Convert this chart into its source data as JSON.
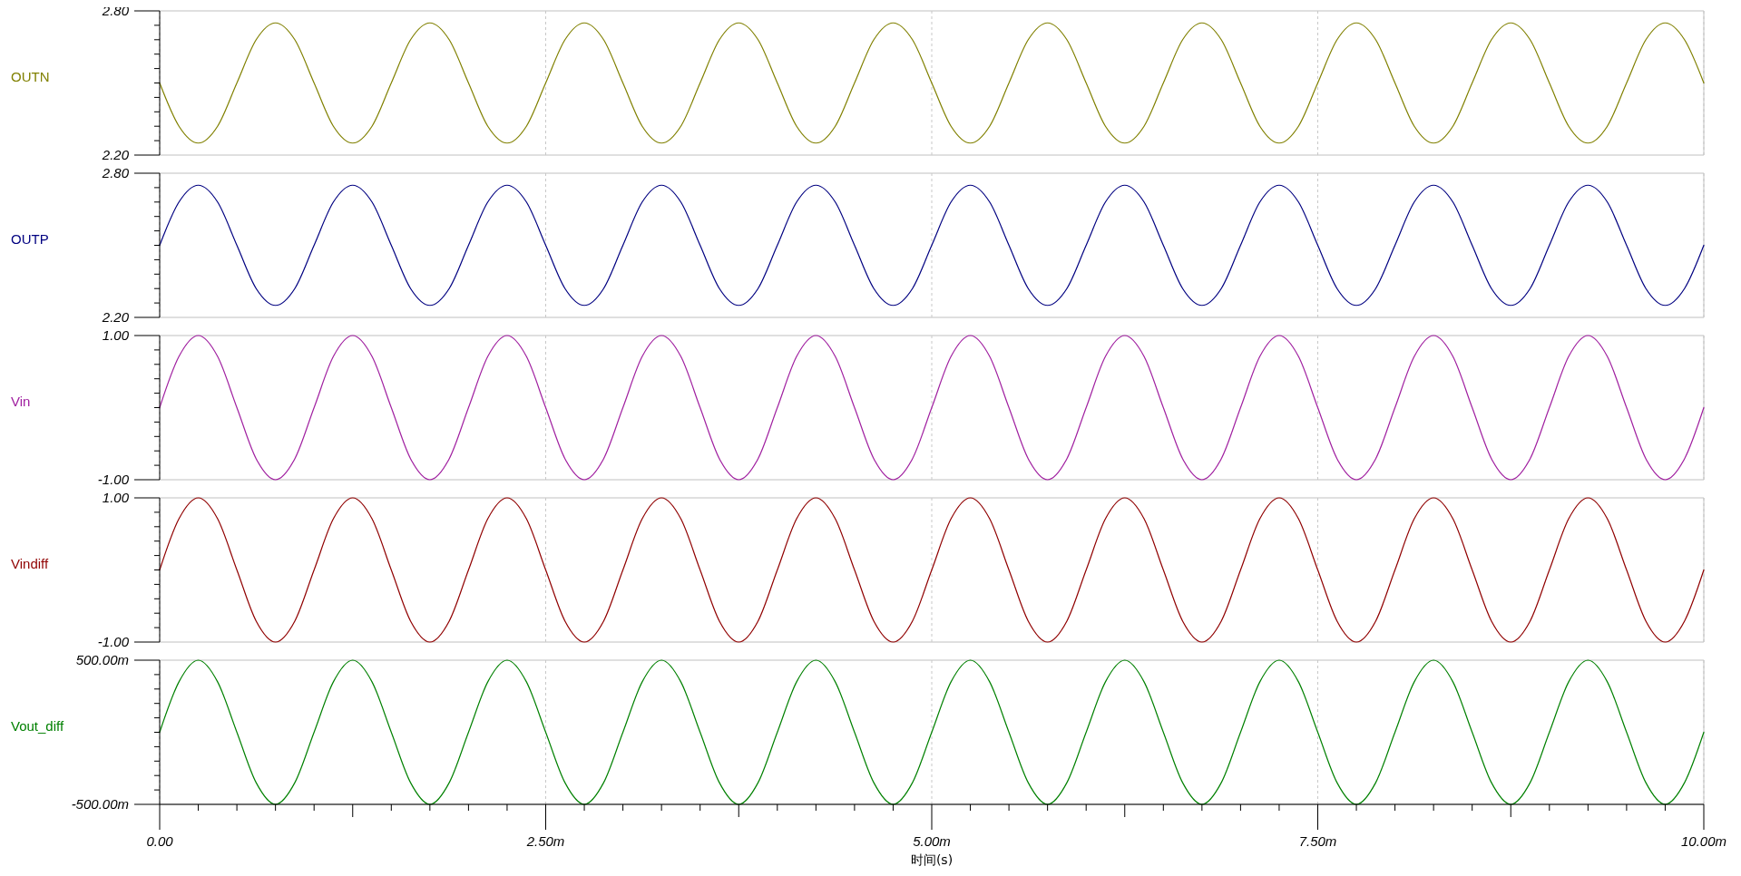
{
  "chart_data": [
    {
      "type": "line",
      "xlim": [
        0,
        10
      ],
      "ylim": [
        2.2,
        2.8
      ],
      "tick_labels": "y",
      "grid": "x",
      "xticks": [
        {
          "value": 0,
          "label": null
        },
        {
          "value": 2.5,
          "label": null
        },
        {
          "value": 5,
          "label": null
        },
        {
          "value": 7.5,
          "label": null
        },
        {
          "value": 10,
          "label": null
        }
      ],
      "yticks": [
        {
          "value": 2.2,
          "label": "2.20"
        },
        {
          "value": 2.26,
          "label": null
        },
        {
          "value": 2.32,
          "label": null
        },
        {
          "value": 2.38,
          "label": null
        },
        {
          "value": 2.44,
          "label": null
        },
        {
          "value": 2.5,
          "label": null
        },
        {
          "value": 2.56,
          "label": null
        },
        {
          "value": 2.62,
          "label": null
        },
        {
          "value": 2.68,
          "label": null
        },
        {
          "value": 2.74,
          "label": null
        },
        {
          "value": 2.8,
          "label": "2.80"
        }
      ],
      "x": [
        0,
        0.125,
        0.25,
        0.375,
        0.5,
        0.625,
        0.75,
        0.875,
        1,
        1.125,
        1.25,
        1.375,
        1.5,
        1.625,
        1.75,
        1.875,
        2,
        2.125,
        2.25,
        2.375,
        2.5,
        2.625,
        2.75,
        2.875,
        3,
        3.125,
        3.25,
        3.375,
        3.5,
        3.625,
        3.75,
        3.875,
        4,
        4.125,
        4.25,
        4.375,
        4.5,
        4.625,
        4.75,
        4.875,
        5,
        5.125,
        5.25,
        5.375,
        5.5,
        5.625,
        5.75,
        5.875,
        6,
        6.125,
        6.25,
        6.375,
        6.5,
        6.625,
        6.75,
        6.875,
        7,
        7.125,
        7.25,
        7.375,
        7.5,
        7.625,
        7.75,
        7.875,
        8,
        8.125,
        8.25,
        8.375,
        8.5,
        8.625,
        8.75,
        8.875,
        9,
        9.125,
        9.25,
        9.375,
        9.5,
        9.625,
        9.75,
        9.875,
        10
      ],
      "series": [
        {
          "name": "OUTN",
          "color": "#808000",
          "values": [
            2.5,
            2.32,
            2.25,
            2.32,
            2.5,
            2.68,
            2.75,
            2.68,
            2.5,
            2.32,
            2.25,
            2.32,
            2.5,
            2.68,
            2.75,
            2.68,
            2.5,
            2.32,
            2.25,
            2.32,
            2.5,
            2.68,
            2.75,
            2.68,
            2.5,
            2.32,
            2.25,
            2.32,
            2.5,
            2.68,
            2.75,
            2.68,
            2.5,
            2.32,
            2.25,
            2.32,
            2.5,
            2.68,
            2.75,
            2.68,
            2.5,
            2.32,
            2.25,
            2.32,
            2.5,
            2.68,
            2.75,
            2.68,
            2.5,
            2.32,
            2.25,
            2.32,
            2.5,
            2.68,
            2.75,
            2.68,
            2.5,
            2.32,
            2.25,
            2.32,
            2.5,
            2.68,
            2.75,
            2.68,
            2.5,
            2.32,
            2.25,
            2.32,
            2.5,
            2.68,
            2.75,
            2.68,
            2.5,
            2.32,
            2.25,
            2.32,
            2.5,
            2.68,
            2.75,
            2.68,
            2.5
          ]
        }
      ]
    },
    {
      "type": "line",
      "xlim": [
        0,
        10
      ],
      "ylim": [
        2.2,
        2.8
      ],
      "tick_labels": "y",
      "grid": "x",
      "xticks": [
        {
          "value": 0,
          "label": null
        },
        {
          "value": 2.5,
          "label": null
        },
        {
          "value": 5,
          "label": null
        },
        {
          "value": 7.5,
          "label": null
        },
        {
          "value": 10,
          "label": null
        }
      ],
      "yticks": [
        {
          "value": 2.2,
          "label": "2.20"
        },
        {
          "value": 2.26,
          "label": null
        },
        {
          "value": 2.32,
          "label": null
        },
        {
          "value": 2.38,
          "label": null
        },
        {
          "value": 2.44,
          "label": null
        },
        {
          "value": 2.5,
          "label": null
        },
        {
          "value": 2.56,
          "label": null
        },
        {
          "value": 2.62,
          "label": null
        },
        {
          "value": 2.68,
          "label": null
        },
        {
          "value": 2.74,
          "label": null
        },
        {
          "value": 2.8,
          "label": "2.80"
        }
      ],
      "x": [
        0,
        0.125,
        0.25,
        0.375,
        0.5,
        0.625,
        0.75,
        0.875,
        1,
        1.125,
        1.25,
        1.375,
        1.5,
        1.625,
        1.75,
        1.875,
        2,
        2.125,
        2.25,
        2.375,
        2.5,
        2.625,
        2.75,
        2.875,
        3,
        3.125,
        3.25,
        3.375,
        3.5,
        3.625,
        3.75,
        3.875,
        4,
        4.125,
        4.25,
        4.375,
        4.5,
        4.625,
        4.75,
        4.875,
        5,
        5.125,
        5.25,
        5.375,
        5.5,
        5.625,
        5.75,
        5.875,
        6,
        6.125,
        6.25,
        6.375,
        6.5,
        6.625,
        6.75,
        6.875,
        7,
        7.125,
        7.25,
        7.375,
        7.5,
        7.625,
        7.75,
        7.875,
        8,
        8.125,
        8.25,
        8.375,
        8.5,
        8.625,
        8.75,
        8.875,
        9,
        9.125,
        9.25,
        9.375,
        9.5,
        9.625,
        9.75,
        9.875,
        10
      ],
      "series": [
        {
          "name": "OUTP",
          "color": "#000080",
          "values": [
            2.5,
            2.68,
            2.75,
            2.68,
            2.5,
            2.32,
            2.25,
            2.32,
            2.5,
            2.68,
            2.75,
            2.68,
            2.5,
            2.32,
            2.25,
            2.32,
            2.5,
            2.68,
            2.75,
            2.68,
            2.5,
            2.32,
            2.25,
            2.32,
            2.5,
            2.68,
            2.75,
            2.68,
            2.5,
            2.32,
            2.25,
            2.32,
            2.5,
            2.68,
            2.75,
            2.68,
            2.5,
            2.32,
            2.25,
            2.32,
            2.5,
            2.68,
            2.75,
            2.68,
            2.5,
            2.32,
            2.25,
            2.32,
            2.5,
            2.68,
            2.75,
            2.68,
            2.5,
            2.32,
            2.25,
            2.32,
            2.5,
            2.68,
            2.75,
            2.68,
            2.5,
            2.32,
            2.25,
            2.32,
            2.5,
            2.68,
            2.75,
            2.68,
            2.5,
            2.32,
            2.25,
            2.32,
            2.5,
            2.68,
            2.75,
            2.68,
            2.5,
            2.32,
            2.25,
            2.32,
            2.5
          ]
        }
      ]
    },
    {
      "type": "line",
      "xlim": [
        0,
        10
      ],
      "ylim": [
        -1,
        1
      ],
      "tick_labels": "y",
      "grid": "x",
      "xticks": [
        {
          "value": 0,
          "label": null
        },
        {
          "value": 2.5,
          "label": null
        },
        {
          "value": 5,
          "label": null
        },
        {
          "value": 7.5,
          "label": null
        },
        {
          "value": 10,
          "label": null
        }
      ],
      "yticks": [
        {
          "value": -1,
          "label": "-1.00"
        },
        {
          "value": -0.8,
          "label": null
        },
        {
          "value": -0.6,
          "label": null
        },
        {
          "value": -0.4,
          "label": null
        },
        {
          "value": -0.2,
          "label": null
        },
        {
          "value": 0,
          "label": null
        },
        {
          "value": 0.2,
          "label": null
        },
        {
          "value": 0.4,
          "label": null
        },
        {
          "value": 0.6,
          "label": null
        },
        {
          "value": 0.8,
          "label": null
        },
        {
          "value": 1,
          "label": "1.00"
        }
      ],
      "x": [
        0,
        0.125,
        0.25,
        0.375,
        0.5,
        0.625,
        0.75,
        0.875,
        1,
        1.125,
        1.25,
        1.375,
        1.5,
        1.625,
        1.75,
        1.875,
        2,
        2.125,
        2.25,
        2.375,
        2.5,
        2.625,
        2.75,
        2.875,
        3,
        3.125,
        3.25,
        3.375,
        3.5,
        3.625,
        3.75,
        3.875,
        4,
        4.125,
        4.25,
        4.375,
        4.5,
        4.625,
        4.75,
        4.875,
        5,
        5.125,
        5.25,
        5.375,
        5.5,
        5.625,
        5.75,
        5.875,
        6,
        6.125,
        6.25,
        6.375,
        6.5,
        6.625,
        6.75,
        6.875,
        7,
        7.125,
        7.25,
        7.375,
        7.5,
        7.625,
        7.75,
        7.875,
        8,
        8.125,
        8.25,
        8.375,
        8.5,
        8.625,
        8.75,
        8.875,
        9,
        9.125,
        9.25,
        9.375,
        9.5,
        9.625,
        9.75,
        9.875,
        10
      ],
      "series": [
        {
          "name": "Vin",
          "color": "#a020a0",
          "values": [
            0,
            0.71,
            1,
            0.71,
            0,
            -0.71,
            -1,
            -0.71,
            0,
            0.71,
            1,
            0.71,
            0,
            -0.71,
            -1,
            -0.71,
            0,
            0.71,
            1,
            0.71,
            0,
            -0.71,
            -1,
            -0.71,
            0,
            0.71,
            1,
            0.71,
            0,
            -0.71,
            -1,
            -0.71,
            0,
            0.71,
            1,
            0.71,
            0,
            -0.71,
            -1,
            -0.71,
            0,
            0.71,
            1,
            0.71,
            0,
            -0.71,
            -1,
            -0.71,
            0,
            0.71,
            1,
            0.71,
            0,
            -0.71,
            -1,
            -0.71,
            0,
            0.71,
            1,
            0.71,
            0,
            -0.71,
            -1,
            -0.71,
            0,
            0.71,
            1,
            0.71,
            0,
            -0.71,
            -1,
            -0.71,
            0,
            0.71,
            1,
            0.71,
            0,
            -0.71,
            -1,
            -0.71,
            0
          ]
        }
      ]
    },
    {
      "type": "line",
      "xlim": [
        0,
        10
      ],
      "ylim": [
        -1,
        1
      ],
      "tick_labels": "y",
      "grid": "x",
      "xticks": [
        {
          "value": 0,
          "label": null
        },
        {
          "value": 2.5,
          "label": null
        },
        {
          "value": 5,
          "label": null
        },
        {
          "value": 7.5,
          "label": null
        },
        {
          "value": 10,
          "label": null
        }
      ],
      "yticks": [
        {
          "value": -1,
          "label": "-1.00"
        },
        {
          "value": -0.8,
          "label": null
        },
        {
          "value": -0.6,
          "label": null
        },
        {
          "value": -0.4,
          "label": null
        },
        {
          "value": -0.2,
          "label": null
        },
        {
          "value": 0,
          "label": null
        },
        {
          "value": 0.2,
          "label": null
        },
        {
          "value": 0.4,
          "label": null
        },
        {
          "value": 0.6,
          "label": null
        },
        {
          "value": 0.8,
          "label": null
        },
        {
          "value": 1,
          "label": "1.00"
        }
      ],
      "x": [
        0,
        0.125,
        0.25,
        0.375,
        0.5,
        0.625,
        0.75,
        0.875,
        1,
        1.125,
        1.25,
        1.375,
        1.5,
        1.625,
        1.75,
        1.875,
        2,
        2.125,
        2.25,
        2.375,
        2.5,
        2.625,
        2.75,
        2.875,
        3,
        3.125,
        3.25,
        3.375,
        3.5,
        3.625,
        3.75,
        3.875,
        4,
        4.125,
        4.25,
        4.375,
        4.5,
        4.625,
        4.75,
        4.875,
        5,
        5.125,
        5.25,
        5.375,
        5.5,
        5.625,
        5.75,
        5.875,
        6,
        6.125,
        6.25,
        6.375,
        6.5,
        6.625,
        6.75,
        6.875,
        7,
        7.125,
        7.25,
        7.375,
        7.5,
        7.625,
        7.75,
        7.875,
        8,
        8.125,
        8.25,
        8.375,
        8.5,
        8.625,
        8.75,
        8.875,
        9,
        9.125,
        9.25,
        9.375,
        9.5,
        9.625,
        9.75,
        9.875,
        10
      ],
      "series": [
        {
          "name": "Vindiff",
          "color": "#900000",
          "values": [
            0,
            0.71,
            1,
            0.71,
            0,
            -0.71,
            -1,
            -0.71,
            0,
            0.71,
            1,
            0.71,
            0,
            -0.71,
            -1,
            -0.71,
            0,
            0.71,
            1,
            0.71,
            0,
            -0.71,
            -1,
            -0.71,
            0,
            0.71,
            1,
            0.71,
            0,
            -0.71,
            -1,
            -0.71,
            0,
            0.71,
            1,
            0.71,
            0,
            -0.71,
            -1,
            -0.71,
            0,
            0.71,
            1,
            0.71,
            0,
            -0.71,
            -1,
            -0.71,
            0,
            0.71,
            1,
            0.71,
            0,
            -0.71,
            -1,
            -0.71,
            0,
            0.71,
            1,
            0.71,
            0,
            -0.71,
            -1,
            -0.71,
            0,
            0.71,
            1,
            0.71,
            0,
            -0.71,
            -1,
            -0.71,
            0,
            0.71,
            1,
            0.71,
            0,
            -0.71,
            -1,
            -0.71,
            0
          ]
        }
      ]
    },
    {
      "type": "line",
      "xlim": [
        0,
        10
      ],
      "ylim": [
        -500,
        500
      ],
      "grid": "x",
      "xlabel": "时间(s)",
      "xticks": [
        {
          "value": 0,
          "label": "0.00"
        },
        {
          "value": 2.5,
          "label": "2.50m"
        },
        {
          "value": 5,
          "label": "5.00m"
        },
        {
          "value": 7.5,
          "label": "7.50m"
        },
        {
          "value": 10,
          "label": "10.00m"
        }
      ],
      "yticks": [
        {
          "value": -500,
          "label": "-500.00m"
        },
        {
          "value": -400,
          "label": null
        },
        {
          "value": -300,
          "label": null
        },
        {
          "value": -200,
          "label": null
        },
        {
          "value": -100,
          "label": null
        },
        {
          "value": 0,
          "label": null
        },
        {
          "value": 100,
          "label": null
        },
        {
          "value": 200,
          "label": null
        },
        {
          "value": 300,
          "label": null
        },
        {
          "value": 400,
          "label": null
        },
        {
          "value": 500,
          "label": "500.00m"
        }
      ],
      "x": [
        0,
        0.125,
        0.25,
        0.375,
        0.5,
        0.625,
        0.75,
        0.875,
        1,
        1.125,
        1.25,
        1.375,
        1.5,
        1.625,
        1.75,
        1.875,
        2,
        2.125,
        2.25,
        2.375,
        2.5,
        2.625,
        2.75,
        2.875,
        3,
        3.125,
        3.25,
        3.375,
        3.5,
        3.625,
        3.75,
        3.875,
        4,
        4.125,
        4.25,
        4.375,
        4.5,
        4.625,
        4.75,
        4.875,
        5,
        5.125,
        5.25,
        5.375,
        5.5,
        5.625,
        5.75,
        5.875,
        6,
        6.125,
        6.25,
        6.375,
        6.5,
        6.625,
        6.75,
        6.875,
        7,
        7.125,
        7.25,
        7.375,
        7.5,
        7.625,
        7.75,
        7.875,
        8,
        8.125,
        8.25,
        8.375,
        8.5,
        8.625,
        8.75,
        8.875,
        9,
        9.125,
        9.25,
        9.375,
        9.5,
        9.625,
        9.75,
        9.875,
        10
      ],
      "series": [
        {
          "name": "Vout_diff",
          "color": "#008000",
          "values": [
            0,
            350,
            500,
            350,
            0,
            -350,
            -500,
            -350,
            0,
            350,
            500,
            350,
            0,
            -350,
            -500,
            -350,
            0,
            350,
            500,
            350,
            0,
            -350,
            -500,
            -350,
            0,
            350,
            500,
            350,
            0,
            -350,
            -500,
            -350,
            0,
            350,
            500,
            350,
            0,
            -350,
            -500,
            -350,
            0,
            350,
            500,
            350,
            0,
            -350,
            -500,
            -350,
            0,
            350,
            500,
            350,
            0,
            -350,
            -500,
            -350,
            0,
            350,
            500,
            350,
            0,
            -350,
            -500,
            -350,
            0,
            350,
            500,
            350,
            0,
            -350,
            -500,
            -350,
            0,
            350,
            500,
            350,
            0,
            -350,
            -500,
            -350,
            0
          ]
        }
      ]
    }
  ]
}
